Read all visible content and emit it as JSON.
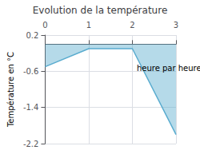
{
  "chart_data": {
    "type": "area",
    "title": "Evolution de la température",
    "ylabel": "Température en °C",
    "x": [
      0,
      1,
      2,
      3
    ],
    "values": [
      -0.5,
      -0.1,
      -0.1,
      -2.0
    ],
    "color": "#5aaccf",
    "xlim": [
      0,
      3
    ],
    "ylim": [
      -2.2,
      0.2
    ],
    "xticks": [
      0,
      1,
      2,
      3
    ],
    "yticks": [
      0.2,
      -0.6,
      -1.4,
      -2.2
    ],
    "grid": true,
    "annotations": [
      {
        "text": "heure par heure",
        "x": 2.1,
        "y": -0.45
      }
    ]
  }
}
